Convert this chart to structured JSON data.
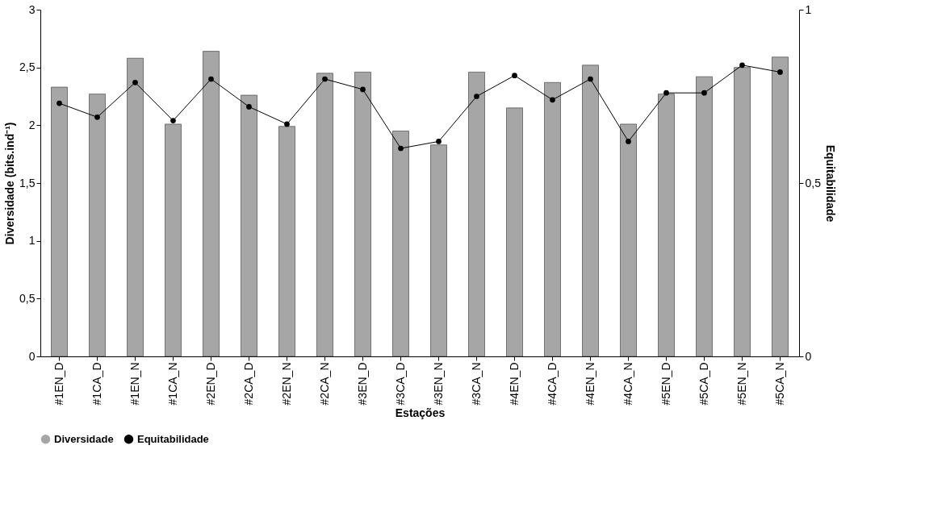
{
  "chart_data": {
    "type": "bar",
    "xlabel": "Estações",
    "ylabel": "Diversidade (bits.ind⁻¹)",
    "y2label": "Equitabilidade",
    "categories": [
      "#1EN_D",
      "#1CA_D",
      "#1EN_N",
      "#1CA_N",
      "#2EN_D",
      "#2CA_D",
      "#2EN_N",
      "#2CA_N",
      "#3EN_D",
      "#3CA_D",
      "#3EN_N",
      "#3CA_N",
      "#4EN_D",
      "#4CA_D",
      "#4EN_N",
      "#4CA_N",
      "#5EN_D",
      "#5CA_D",
      "#5EN_N",
      "#5CA_N"
    ],
    "series": [
      {
        "name": "Diversidade",
        "color": "#a6a6a6",
        "values": [
          2.33,
          2.27,
          2.58,
          2.01,
          2.64,
          2.26,
          1.99,
          2.45,
          2.46,
          1.95,
          1.83,
          2.46,
          2.15,
          2.37,
          2.52,
          2.01,
          2.27,
          2.42,
          2.5,
          2.59
        ]
      },
      {
        "name": "Equitabilidade",
        "type": "line",
        "axis": "y2",
        "color": "#000000",
        "marker": "circle",
        "values": [
          0.73,
          0.69,
          0.79,
          0.68,
          0.8,
          0.72,
          0.67,
          0.8,
          0.77,
          0.6,
          0.62,
          0.75,
          0.81,
          0.74,
          0.8,
          0.62,
          0.76,
          0.76,
          0.84,
          0.82
        ]
      }
    ],
    "ylim": [
      0,
      3
    ],
    "yticks": [
      0,
      {
        "value": 0.5,
        "label": "0,5"
      },
      1,
      {
        "value": 1.5,
        "label": "1,5"
      },
      2,
      {
        "value": 2.5,
        "label": "2,5"
      },
      3
    ],
    "y2lim": [
      0,
      1
    ],
    "y2ticks": [
      0,
      {
        "value": 0.5,
        "label": "0,5"
      },
      1
    ],
    "grid": false,
    "legend": "bottom"
  }
}
